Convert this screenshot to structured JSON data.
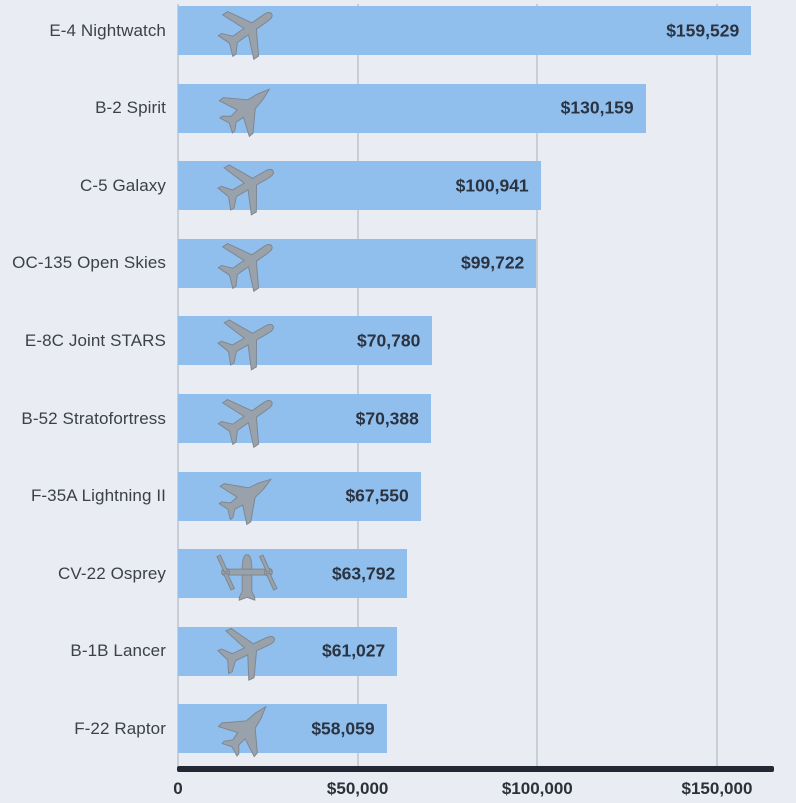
{
  "chart_data": {
    "type": "bar",
    "orientation": "horizontal",
    "title": "",
    "xlabel": "",
    "ylabel": "",
    "legend": "none",
    "grid": "vertical gridlines at x ticks",
    "axis_max": 172000,
    "x_ticks": [
      {
        "value": 0,
        "label": "0"
      },
      {
        "value": 50000,
        "label": "$50,000"
      },
      {
        "value": 100000,
        "label": "$100,000"
      },
      {
        "value": 150000,
        "label": "$150,000"
      }
    ],
    "categories": [
      "E-4 Nightwatch",
      "B-2 Spirit",
      "C-5 Galaxy",
      "OC-135 Open Skies",
      "E-8C Joint STARS",
      "B-52 Stratofortress",
      "F-35A Lightning II",
      "CV-22 Osprey",
      "B-1B Lancer",
      "F-22 Raptor"
    ],
    "values": [
      159529,
      130159,
      100941,
      99722,
      70780,
      70388,
      67550,
      63792,
      61027,
      58059
    ],
    "value_labels": [
      "$159,529",
      "$130,159",
      "$100,941",
      "$99,722",
      "$70,780",
      "$70,388",
      "$67,550",
      "$63,792",
      "$61,027",
      "$58,059"
    ],
    "icons": [
      "jet",
      "fighter",
      "jet",
      "jet",
      "jet",
      "jet",
      "fighter",
      "osprey",
      "jet",
      "fighter"
    ],
    "icon_rotations": [
      55,
      50,
      60,
      55,
      60,
      55,
      55,
      0,
      65,
      40
    ]
  },
  "colors": {
    "background": "#e9ecf2",
    "bar": "#90bfee",
    "value_text": "#2b3340",
    "category_text": "#3c4149",
    "axis_line": "#232834",
    "gridline": "#c9cdd6",
    "tick_text": "#2b303a",
    "aircraft_silhouette": "#99a1ab",
    "aircraft_silhouette_dark": "#7e8690"
  },
  "layout_note": "horizontal bar chart, aircraft photo at left of each bar, value inside bar right-aligned"
}
